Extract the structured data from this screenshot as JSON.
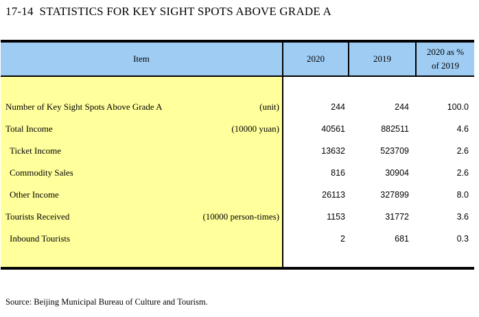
{
  "title": "17-14  STATISTICS FOR KEY SIGHT SPOTS ABOVE GRADE A",
  "table": {
    "headers": {
      "item": "Item",
      "y2020": "2020",
      "y2019": "2019",
      "pct_line1": "2020 as %",
      "pct_line2": "of 2019"
    },
    "rows": [
      {
        "item": "Number of Key Sight Spots Above Grade A",
        "unit": "(unit)",
        "y2020": "244",
        "y2019": "244",
        "pct": "100.0"
      },
      {
        "item": "Total Income",
        "unit": "(10000 yuan)",
        "y2020": "40561",
        "y2019": "882511",
        "pct": "4.6"
      },
      {
        "item": "Ticket Income",
        "unit": "",
        "y2020": "13632",
        "y2019": "523709",
        "pct": "2.6"
      },
      {
        "item": "Commodity Sales",
        "unit": "",
        "y2020": "816",
        "y2019": "30904",
        "pct": "2.6"
      },
      {
        "item": "Other Income",
        "unit": "",
        "y2020": "26113",
        "y2019": "327899",
        "pct": "8.0"
      },
      {
        "item": "Tourists Received",
        "unit": "(10000 person-times)",
        "y2020": "1153",
        "y2019": "31772",
        "pct": "3.6"
      },
      {
        "item": "Inbound Tourists",
        "unit": "",
        "y2020": "2",
        "y2019": "681",
        "pct": "0.3"
      }
    ]
  },
  "source": "Source: Beijing Municipal Bureau of Culture and Tourism.",
  "colors": {
    "header_bg": "#9FCCF3",
    "item_column_bg": "#FFFF9C",
    "border": "#000000"
  }
}
